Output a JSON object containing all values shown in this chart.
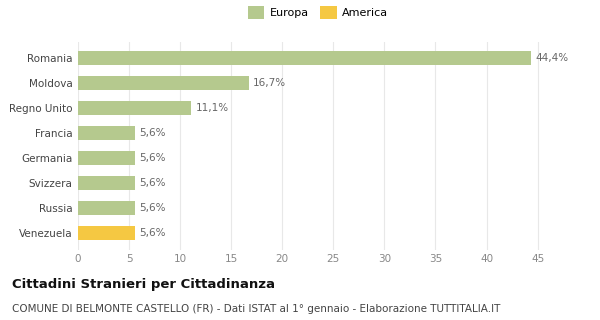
{
  "categories": [
    "Venezuela",
    "Russia",
    "Svizzera",
    "Germania",
    "Francia",
    "Regno Unito",
    "Moldova",
    "Romania"
  ],
  "values": [
    5.6,
    5.6,
    5.6,
    5.6,
    5.6,
    11.1,
    16.7,
    44.4
  ],
  "labels": [
    "5,6%",
    "5,6%",
    "5,6%",
    "5,6%",
    "5,6%",
    "11,1%",
    "16,7%",
    "44,4%"
  ],
  "colors": [
    "#f5c842",
    "#b5c98e",
    "#b5c98e",
    "#b5c98e",
    "#b5c98e",
    "#b5c98e",
    "#b5c98e",
    "#b5c98e"
  ],
  "legend": [
    {
      "label": "Europa",
      "color": "#b5c98e"
    },
    {
      "label": "America",
      "color": "#f5c842"
    }
  ],
  "xlim": [
    0,
    47
  ],
  "xticks": [
    0,
    5,
    10,
    15,
    20,
    25,
    30,
    35,
    40,
    45
  ],
  "title_bold": "Cittadini Stranieri per Cittadinanza",
  "title_sub": "COMUNE DI BELMONTE CASTELLO (FR) - Dati ISTAT al 1° gennaio - Elaborazione TUTTITALIA.IT",
  "background_color": "#ffffff",
  "grid_color": "#e8e8e8",
  "bar_height": 0.55,
  "label_fontsize": 7.5,
  "tick_fontsize": 7.5,
  "title_fontsize": 9.5,
  "sub_fontsize": 7.5
}
